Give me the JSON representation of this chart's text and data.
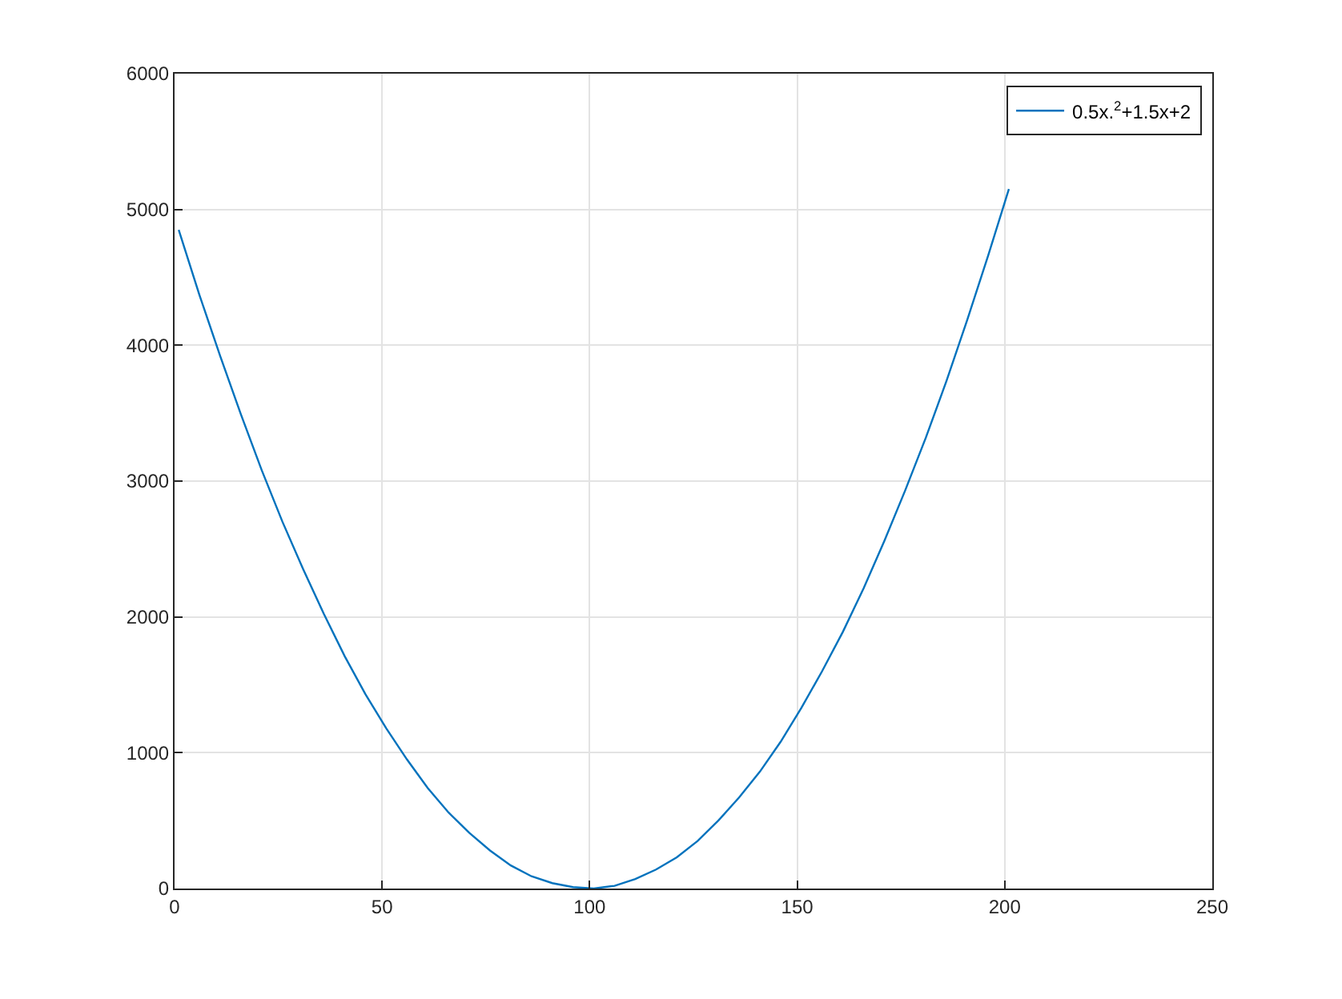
{
  "chart_data": {
    "type": "line",
    "x": [
      1,
      6,
      11,
      16,
      21,
      26,
      31,
      36,
      41,
      46,
      51,
      56,
      61,
      66,
      71,
      76,
      81,
      86,
      91,
      96,
      101,
      106,
      111,
      116,
      121,
      126,
      131,
      136,
      141,
      146,
      151,
      156,
      161,
      166,
      171,
      176,
      181,
      186,
      191,
      196,
      201
    ],
    "series": [
      {
        "name": "0.5x.$^{2}$+1.5x+2",
        "color": "#0072bd",
        "values": [
          4850,
          4370,
          3920,
          3490,
          3080,
          2700,
          2350,
          2020,
          1710,
          1430,
          1180,
          950,
          740,
          560,
          410,
          280,
          170,
          90,
          40,
          10,
          0,
          20,
          70,
          140,
          230,
          350,
          500,
          670,
          860,
          1080,
          1330,
          1600,
          1890,
          2210,
          2560,
          2930,
          3320,
          3740,
          4190,
          4660,
          5150
        ]
      }
    ],
    "xlim": [
      0,
      250
    ],
    "xticks": [
      0,
      50,
      100,
      150,
      200,
      250
    ],
    "ylim": [
      0,
      6000
    ],
    "yticks": [
      0,
      1000,
      2000,
      3000,
      4000,
      5000,
      6000
    ],
    "grid": true,
    "legend": "top right",
    "marker": "none",
    "line_style": "solid"
  }
}
